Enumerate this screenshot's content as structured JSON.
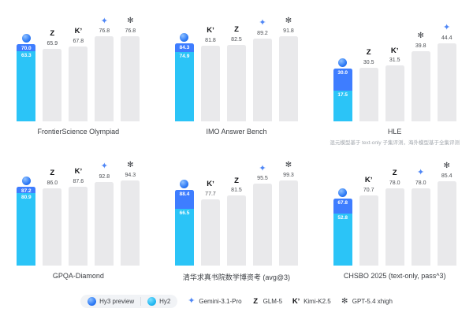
{
  "colors": {
    "hy3": "#3e7dff",
    "hy2": "#2bc4f7",
    "bar_gray": "#e9e9eb",
    "gemini": "#4e86f6"
  },
  "icon_glyphs": {
    "hunyuan-icon": "",
    "hunyuan2-icon": "",
    "glm-icon": "Z",
    "kimi-icon": "Kʼ",
    "gemini-icon": "✦",
    "gpt-icon": "✻"
  },
  "chart_data": [
    {
      "type": "bar",
      "title": "FrontierScience Olympiad",
      "ylim": [
        0,
        80
      ],
      "bars": [
        {
          "model": "hy3-preview-hy2",
          "icon": "hunyuan-icon",
          "hy3": "70.0",
          "hy2": "63.3"
        },
        {
          "model": "glm-5",
          "icon": "glm-icon",
          "value": "65.9"
        },
        {
          "model": "kimi-k2.5",
          "icon": "kimi-icon",
          "value": "67.8"
        },
        {
          "model": "gemini-3.1-pro",
          "icon": "gemini-icon",
          "value": "76.8"
        },
        {
          "model": "gpt-5.4-xhigh",
          "icon": "gpt-icon",
          "value": "76.8"
        }
      ]
    },
    {
      "type": "bar",
      "title": "IMO Answer Bench",
      "ylim": [
        0,
        95
      ],
      "bars": [
        {
          "model": "hy3-preview-hy2",
          "icon": "hunyuan-icon",
          "hy3": "84.3",
          "hy2": "74.9"
        },
        {
          "model": "kimi-k2.5",
          "icon": "kimi-icon",
          "value": "81.8"
        },
        {
          "model": "glm-5",
          "icon": "glm-icon",
          "value": "82.5"
        },
        {
          "model": "gemini-3.1-pro",
          "icon": "gemini-icon",
          "value": "89.2"
        },
        {
          "model": "gpt-5.4-xhigh",
          "icon": "gpt-icon",
          "value": "91.8"
        }
      ]
    },
    {
      "type": "bar",
      "title": "HLE",
      "footnote": "混元模型基于 text-only 子集评测，海外模型基于全集评测",
      "ylim": [
        0,
        50
      ],
      "bars": [
        {
          "model": "hy3-preview-hy2",
          "icon": "hunyuan-icon",
          "hy3": "30.0",
          "hy2": "17.5"
        },
        {
          "model": "glm-5",
          "icon": "glm-icon",
          "value": "30.5"
        },
        {
          "model": "kimi-k2.5",
          "icon": "kimi-icon",
          "value": "31.5"
        },
        {
          "model": "gpt-5.4-xhigh",
          "icon": "gpt-icon",
          "value": "39.8"
        },
        {
          "model": "gemini-3.1-pro",
          "icon": "gemini-icon",
          "value": "44.4"
        }
      ]
    },
    {
      "type": "bar",
      "title": "GPQA-Diamond",
      "ylim": [
        0,
        98
      ],
      "bars": [
        {
          "model": "hy3-preview-hy2",
          "icon": "hunyuan-icon",
          "hy3": "87.2",
          "hy2": "80.9"
        },
        {
          "model": "glm-5",
          "icon": "glm-icon",
          "value": "86.0"
        },
        {
          "model": "kimi-k2.5",
          "icon": "kimi-icon",
          "value": "87.6"
        },
        {
          "model": "gemini-3.1-pro",
          "icon": "gemini-icon",
          "value": "92.8"
        },
        {
          "model": "gpt-5.4-xhigh",
          "icon": "gpt-icon",
          "value": "94.3"
        }
      ]
    },
    {
      "type": "bar",
      "title": "清华求真书院数学博资考 (avg@3)",
      "ylim": [
        0,
        103
      ],
      "bars": [
        {
          "model": "hy3-preview-hy2",
          "icon": "hunyuan-icon",
          "hy3": "88.4",
          "hy2": "66.5"
        },
        {
          "model": "kimi-k2.5",
          "icon": "kimi-icon",
          "value": "77.7"
        },
        {
          "model": "glm-5",
          "icon": "glm-icon",
          "value": "81.5"
        },
        {
          "model": "gemini-3.1-pro",
          "icon": "gemini-icon",
          "value": "95.5"
        },
        {
          "model": "gpt-5.4-xhigh",
          "icon": "gpt-icon",
          "value": "99.3"
        }
      ]
    },
    {
      "type": "bar",
      "title": "CHSBO 2025 (text-only, pass^3)",
      "ylim": [
        0,
        89
      ],
      "bars": [
        {
          "model": "hy3-preview-hy2",
          "icon": "hunyuan-icon",
          "hy3": "67.8",
          "hy2": "52.8"
        },
        {
          "model": "kimi-k2.5",
          "icon": "kimi-icon",
          "value": "70.7"
        },
        {
          "model": "glm-5",
          "icon": "glm-icon",
          "value": "78.0"
        },
        {
          "model": "gemini-3.1-pro",
          "icon": "gemini-icon",
          "value": "78.0"
        },
        {
          "model": "gpt-5.4-xhigh",
          "icon": "gpt-icon",
          "value": "85.4"
        }
      ]
    }
  ],
  "legend": {
    "items": [
      {
        "icon": "hunyuan-icon",
        "label": "Hy3 preview",
        "group": "hy"
      },
      {
        "icon": "hunyuan2-icon",
        "label": "Hy2",
        "group": "hy"
      },
      {
        "icon": "gemini-icon",
        "label": "Gemini-3.1-Pro"
      },
      {
        "icon": "glm-icon",
        "label": "GLM-5"
      },
      {
        "icon": "kimi-icon",
        "label": "Kimi-K2.5"
      },
      {
        "icon": "gpt-icon",
        "label": "GPT-5.4 xhigh"
      }
    ]
  }
}
